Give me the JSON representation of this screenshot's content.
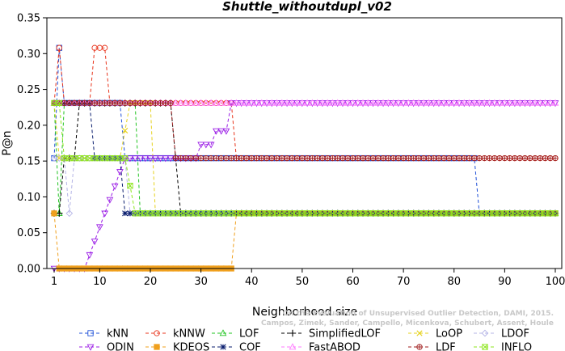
{
  "chart_data": {
    "type": "line",
    "title": "Shuttle_withoutdupl_v02",
    "xlabel": "Neighborhood size",
    "ylabel": "P@n",
    "xlim": [
      1,
      100
    ],
    "ylim": [
      0,
      0.35
    ],
    "xticks": [
      1,
      10,
      20,
      30,
      40,
      50,
      60,
      70,
      80,
      90,
      100
    ],
    "yticks": [
      "0.00",
      "0.05",
      "0.10",
      "0.15",
      "0.20",
      "0.25",
      "0.30",
      "0.35"
    ],
    "grid": false,
    "legend_position": "bottom",
    "credit_lines": [
      "Campos, Zimek, Sander, Campello, Micenkova, Schubert, Assent, Houle",
      "On the Evaluation of Unsupervised Outlier Detection, DAMI, 2015."
    ],
    "series": [
      {
        "name": "kNN",
        "color": "#1f50d8",
        "marker": "square",
        "breaks": [
          [
            1,
            0.154
          ],
          [
            2,
            0.308
          ],
          [
            3,
            0.231
          ],
          [
            14,
            0.231
          ],
          [
            15,
            0.154
          ],
          [
            84,
            0.154
          ],
          [
            85,
            0.077
          ],
          [
            100,
            0.077
          ]
        ]
      },
      {
        "name": "kNNW",
        "color": "#e8341c",
        "marker": "circle",
        "breaks": [
          [
            1,
            0.231
          ],
          [
            2,
            0.308
          ],
          [
            3,
            0.231
          ],
          [
            8,
            0.231
          ],
          [
            9,
            0.308
          ],
          [
            11,
            0.308
          ],
          [
            12,
            0.231
          ],
          [
            36,
            0.231
          ],
          [
            37,
            0.154
          ],
          [
            100,
            0.154
          ]
        ]
      },
      {
        "name": "LOF",
        "color": "#22c422",
        "marker": "triangle-up",
        "breaks": [
          [
            1,
            0.231
          ],
          [
            2,
            0.077
          ],
          [
            3,
            0.231
          ],
          [
            17,
            0.231
          ],
          [
            18,
            0.077
          ],
          [
            100,
            0.077
          ]
        ]
      },
      {
        "name": "SimplifiedLOF",
        "color": "#000000",
        "marker": "plus",
        "breaks": [
          [
            1,
            0.077
          ],
          [
            2,
            0.077
          ],
          [
            3,
            0.154
          ],
          [
            5,
            0.154
          ],
          [
            6,
            0.231
          ],
          [
            24,
            0.231
          ],
          [
            25,
            0.154
          ],
          [
            26,
            0.077
          ],
          [
            100,
            0.077
          ]
        ]
      },
      {
        "name": "LoOP",
        "color": "#e6d21e",
        "marker": "x",
        "breaks": [
          [
            1,
            0.231
          ],
          [
            2,
            0.154
          ],
          [
            3,
            0.154
          ],
          [
            14,
            0.154
          ],
          [
            16,
            0.231
          ],
          [
            20,
            0.231
          ],
          [
            21,
            0.077
          ],
          [
            100,
            0.077
          ]
        ]
      },
      {
        "name": "LDOF",
        "color": "#b4b4e6",
        "marker": "diamond",
        "breaks": [
          [
            1,
            0.154
          ],
          [
            3,
            0.154
          ],
          [
            4,
            0.077
          ],
          [
            5,
            0.154
          ],
          [
            15,
            0.154
          ],
          [
            16,
            0.077
          ],
          [
            100,
            0.077
          ]
        ]
      },
      {
        "name": "ODIN",
        "color": "#9b1ee6",
        "marker": "triangle-down",
        "breaks": [
          [
            1,
            0.0
          ],
          [
            7,
            0.0
          ],
          [
            8,
            0.019
          ],
          [
            9,
            0.038
          ],
          [
            10,
            0.058
          ],
          [
            11,
            0.077
          ],
          [
            12,
            0.096
          ],
          [
            13,
            0.115
          ],
          [
            14,
            0.135
          ],
          [
            15,
            0.154
          ],
          [
            29,
            0.154
          ],
          [
            30,
            0.173
          ],
          [
            32,
            0.173
          ],
          [
            33,
            0.192
          ],
          [
            35,
            0.192
          ],
          [
            36,
            0.231
          ],
          [
            100,
            0.231
          ]
        ]
      },
      {
        "name": "KDEOS",
        "color": "#f0a01e",
        "marker": "square-filled",
        "breaks": [
          [
            1,
            0.077
          ],
          [
            2,
            0.0
          ],
          [
            36,
            0.0
          ],
          [
            37,
            0.077
          ],
          [
            100,
            0.077
          ]
        ]
      },
      {
        "name": "COF",
        "color": "#0a1e6e",
        "marker": "asterisk",
        "breaks": [
          [
            1,
            0.231
          ],
          [
            8,
            0.231
          ],
          [
            9,
            0.154
          ],
          [
            14,
            0.154
          ],
          [
            15,
            0.077
          ],
          [
            100,
            0.077
          ]
        ]
      },
      {
        "name": "FastABOD",
        "color": "#ff78ff",
        "marker": "triangle-up",
        "breaks": [
          [
            1,
            0.231
          ],
          [
            100,
            0.231
          ]
        ]
      },
      {
        "name": "LDF",
        "color": "#a01e1e",
        "marker": "circle-plus",
        "breaks": [
          [
            1,
            0.231
          ],
          [
            24,
            0.231
          ],
          [
            25,
            0.154
          ],
          [
            100,
            0.154
          ]
        ]
      },
      {
        "name": "INFLO",
        "color": "#8ee61e",
        "marker": "square-x",
        "breaks": [
          [
            1,
            0.231
          ],
          [
            2,
            0.231
          ],
          [
            3,
            0.154
          ],
          [
            15,
            0.154
          ],
          [
            17,
            0.077
          ],
          [
            100,
            0.077
          ]
        ]
      }
    ]
  }
}
